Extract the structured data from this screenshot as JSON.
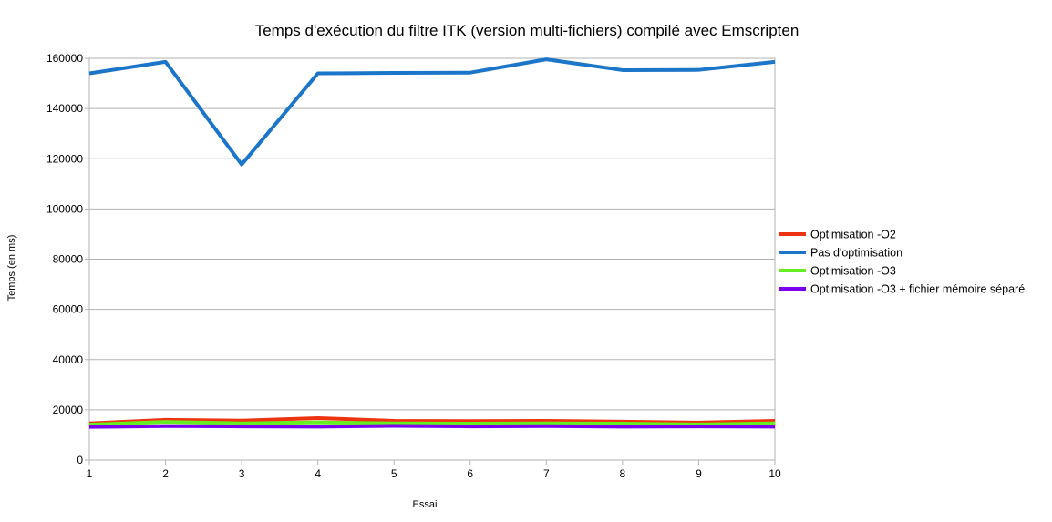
{
  "chart_data": {
    "type": "line",
    "title": "Temps d'exécution du filtre ITK (version multi-fichiers) compilé avec Emscripten",
    "xlabel": "Essai",
    "ylabel": "Temps (en ms)",
    "x": [
      1,
      2,
      3,
      4,
      5,
      6,
      7,
      8,
      9,
      10
    ],
    "x_ticks": [
      "1",
      "2",
      "3",
      "4",
      "5",
      "6",
      "7",
      "8",
      "9",
      "10"
    ],
    "ylim": [
      0,
      160000
    ],
    "y_ticks": [
      "0",
      "20000",
      "40000",
      "60000",
      "80000",
      "100000",
      "120000",
      "140000",
      "160000"
    ],
    "grid": true,
    "legend_position": "right",
    "series": [
      {
        "name": "Optimisation -O2",
        "color": "#ee3311",
        "values": [
          14600,
          16000,
          15700,
          16700,
          15600,
          15500,
          15600,
          15300,
          14900,
          15600
        ]
      },
      {
        "name": "Pas d'optimisation",
        "color": "#1b75c8",
        "values": [
          154000,
          158600,
          117700,
          154000,
          154200,
          154300,
          159600,
          155300,
          155400,
          158600
        ]
      },
      {
        "name": "Optimisation -O3",
        "color": "#66ee22",
        "values": [
          14100,
          15200,
          14600,
          15000,
          14600,
          14500,
          14600,
          14500,
          14200,
          14600
        ]
      },
      {
        "name": "Optimisation -O3 + fichier mémoire séparé",
        "color": "#7a00ee",
        "values": [
          13200,
          13500,
          13400,
          13300,
          13600,
          13400,
          13500,
          13300,
          13400,
          13300
        ]
      }
    ]
  }
}
